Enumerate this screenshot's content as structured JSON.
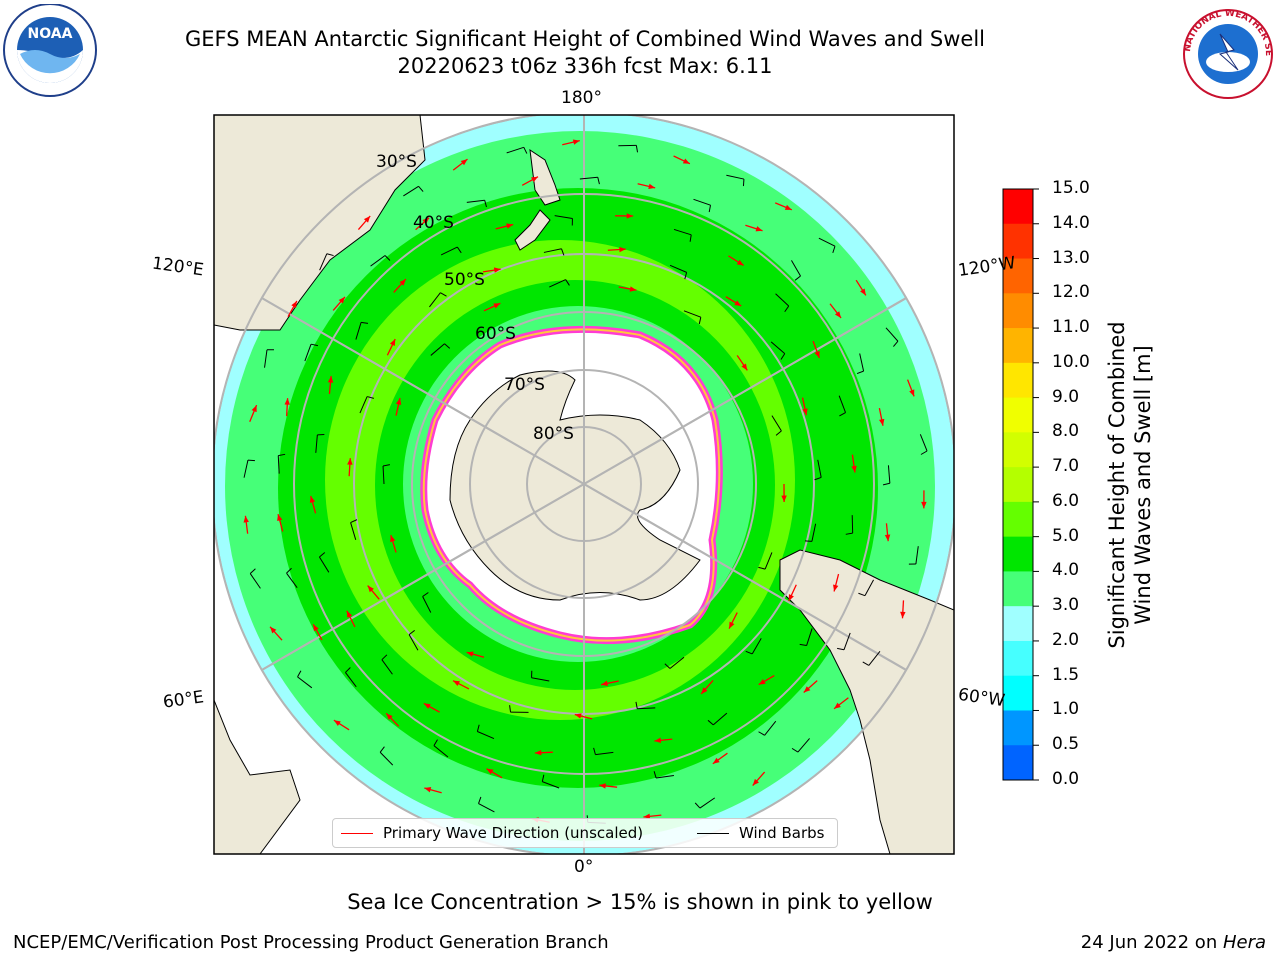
{
  "header": {
    "title_line1": "GEFS MEAN Antarctic Significant Height of Combined Wind Waves and Swell",
    "title_line2": "20220623 t06z 336h fcst   Max: 6.11"
  },
  "logos": {
    "left": "NOAA",
    "right": "NATIONAL WEATHER SERVICE"
  },
  "map": {
    "projection": "south-polar-stereographic",
    "longitude_labels": [
      "180°",
      "120°E",
      "120°W",
      "60°E",
      "60°W",
      "0°"
    ],
    "latitude_labels": [
      "30°S",
      "40°S",
      "50°S",
      "60°S",
      "70°S",
      "80°S"
    ],
    "colors": {
      "land": "#ede9d8",
      "sea_ice": "#ffffff",
      "ice_edge_pink": "#ff3cd2",
      "ice_edge_yellow": "#ffc83c",
      "grid": "#b4b4b4",
      "wave_arrow": "#ff0000",
      "wind_barb": "#000000"
    }
  },
  "colorbar": {
    "label_line1": "Significant Height of Combined",
    "label_line2": "Wind Waves and Swell [m]",
    "ticks": [
      "15.0",
      "14.0",
      "13.0",
      "12.0",
      "11.0",
      "10.0",
      "9.0",
      "8.0",
      "7.0",
      "6.0",
      "5.0",
      "4.0",
      "3.0",
      "2.0",
      "1.5",
      "1.0",
      "0.5",
      "0.0"
    ],
    "colors": [
      "#ff0000",
      "#ff3200",
      "#ff6400",
      "#ff8c00",
      "#ffb400",
      "#ffe600",
      "#f0ff00",
      "#d2ff00",
      "#b4ff00",
      "#64ff00",
      "#00e600",
      "#46ff78",
      "#a0ffff",
      "#46ffff",
      "#00ffff",
      "#0096ff",
      "#0064ff",
      "#0000ff"
    ]
  },
  "legend": {
    "wave_label": "Primary Wave Direction (unscaled)",
    "wind_label": "Wind Barbs"
  },
  "note": "Sea Ice Concentration > 15% is shown in pink to yellow",
  "footer": {
    "left": "NCEP/EMC/Verification Post Processing Product Generation Branch",
    "right_date": "24 Jun 2022 on ",
    "right_host": "Hera"
  }
}
